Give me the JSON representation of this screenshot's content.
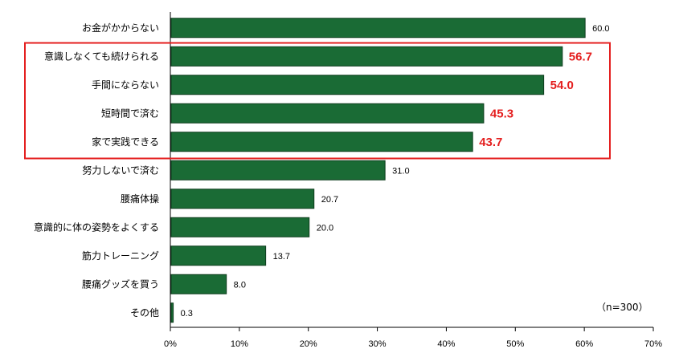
{
  "chart_data": {
    "type": "bar",
    "orientation": "horizontal",
    "categories": [
      "お金がかからない",
      "意識しなくても続けられる",
      "手間にならない",
      "短時間で済む",
      "家で実践できる",
      "努力しないで済む",
      "腰痛体操",
      "意識的に体の姿勢をよくする",
      "筋力トレーニング",
      "腰痛グッズを買う",
      "その他"
    ],
    "values": [
      60.0,
      56.7,
      54.0,
      45.3,
      43.7,
      31.0,
      20.7,
      20.0,
      13.7,
      8.0,
      0.3
    ],
    "value_labels": [
      "60.0",
      "56.7",
      "54.0",
      "45.3",
      "43.7",
      "31.0",
      "20.7",
      "20.0",
      "13.7",
      "8.0",
      "0.3"
    ],
    "highlighted": [
      1,
      2,
      3,
      4
    ],
    "xlim": [
      0,
      70
    ],
    "xticks": [
      0,
      10,
      20,
      30,
      40,
      50,
      60,
      70
    ],
    "xtick_labels": [
      "0%",
      "10%",
      "20%",
      "30%",
      "40%",
      "50%",
      "60%",
      "70%"
    ],
    "note": "（n=300）",
    "grid": false,
    "colors": {
      "bar": "#1a6b35",
      "bar_edge": "#0d3d1d",
      "highlight_box": "#e41e1e",
      "highlight_text": "#e41e1e"
    }
  }
}
